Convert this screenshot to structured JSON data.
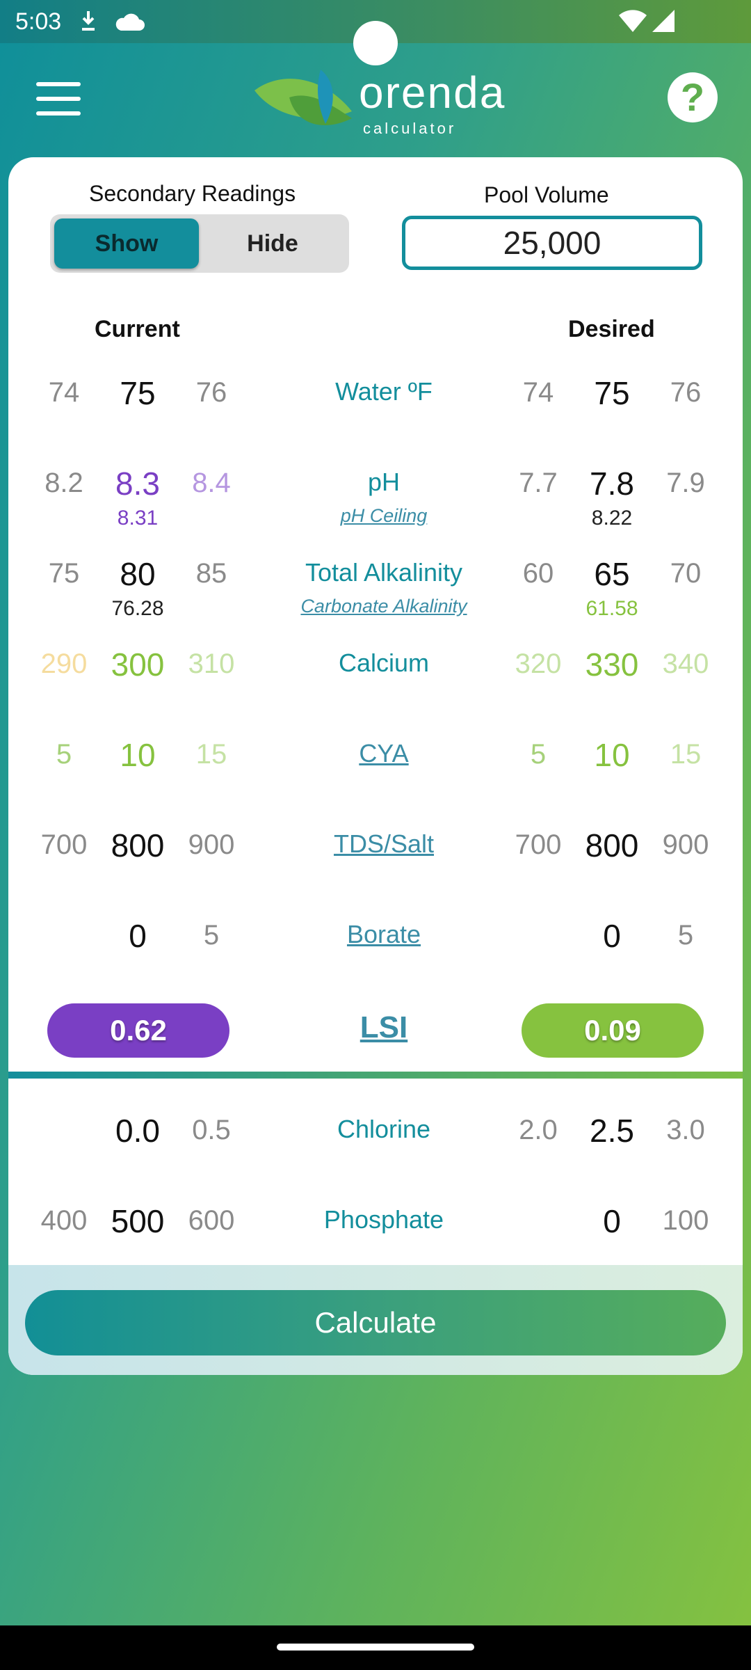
{
  "status": {
    "time": "5:03"
  },
  "header": {
    "logo_word": "orenda",
    "logo_sub": "calculator",
    "help_symbol": "?"
  },
  "settings": {
    "secondary_label": "Secondary Readings",
    "toggle_show": "Show",
    "toggle_hide": "Hide",
    "toggle_selected": "Show",
    "volume_label": "Pool Volume",
    "volume_value": "25,000"
  },
  "columns": {
    "current": "Current",
    "desired": "Desired"
  },
  "rows": [
    {
      "label": "Water ºF",
      "cur": [
        "74",
        "75",
        "76"
      ],
      "cur_sub": "",
      "des": [
        "74",
        "75",
        "76"
      ],
      "des_sub": "",
      "sub_label": ""
    },
    {
      "label": "pH",
      "cur": [
        "8.2",
        "8.3",
        "8.4"
      ],
      "cur_sub": "8.31",
      "des": [
        "7.7",
        "7.8",
        "7.9"
      ],
      "des_sub": "8.22",
      "sub_label": "pH Ceiling"
    },
    {
      "label": "Total Alkalinity",
      "cur": [
        "75",
        "80",
        "85"
      ],
      "cur_sub": "76.28",
      "des": [
        "60",
        "65",
        "70"
      ],
      "des_sub": "61.58",
      "sub_label": "Carbonate Alkalinity"
    },
    {
      "label": "Calcium",
      "cur": [
        "290",
        "300",
        "310"
      ],
      "cur_sub": "",
      "des": [
        "320",
        "330",
        "340"
      ],
      "des_sub": "",
      "sub_label": ""
    },
    {
      "label": "CYA",
      "cur": [
        "5",
        "10",
        "15"
      ],
      "cur_sub": "",
      "des": [
        "5",
        "10",
        "15"
      ],
      "des_sub": "",
      "sub_label": ""
    },
    {
      "label": "TDS/Salt",
      "cur": [
        "700",
        "800",
        "900"
      ],
      "cur_sub": "",
      "des": [
        "700",
        "800",
        "900"
      ],
      "des_sub": "",
      "sub_label": ""
    },
    {
      "label": "Borate",
      "cur": [
        "",
        "0",
        "5"
      ],
      "cur_sub": "",
      "des": [
        "",
        "0",
        "5"
      ],
      "des_sub": "",
      "sub_label": ""
    }
  ],
  "lsi": {
    "label": "LSI",
    "current": "0.62",
    "desired": "0.09",
    "current_color": "#7a3fc4",
    "desired_color": "#86c23f"
  },
  "secondary_rows": [
    {
      "label": "Chlorine",
      "cur": [
        "",
        "0.0",
        "0.5"
      ],
      "des": [
        "2.0",
        "2.5",
        "3.0"
      ]
    },
    {
      "label": "Phosphate",
      "cur": [
        "400",
        "500",
        "600"
      ],
      "des": [
        "",
        "0",
        "100"
      ]
    }
  ],
  "actions": {
    "calculate": "Calculate"
  },
  "colors": {
    "teal": "#138e9c",
    "purple": "#7a3fc4",
    "green": "#86c23f"
  }
}
